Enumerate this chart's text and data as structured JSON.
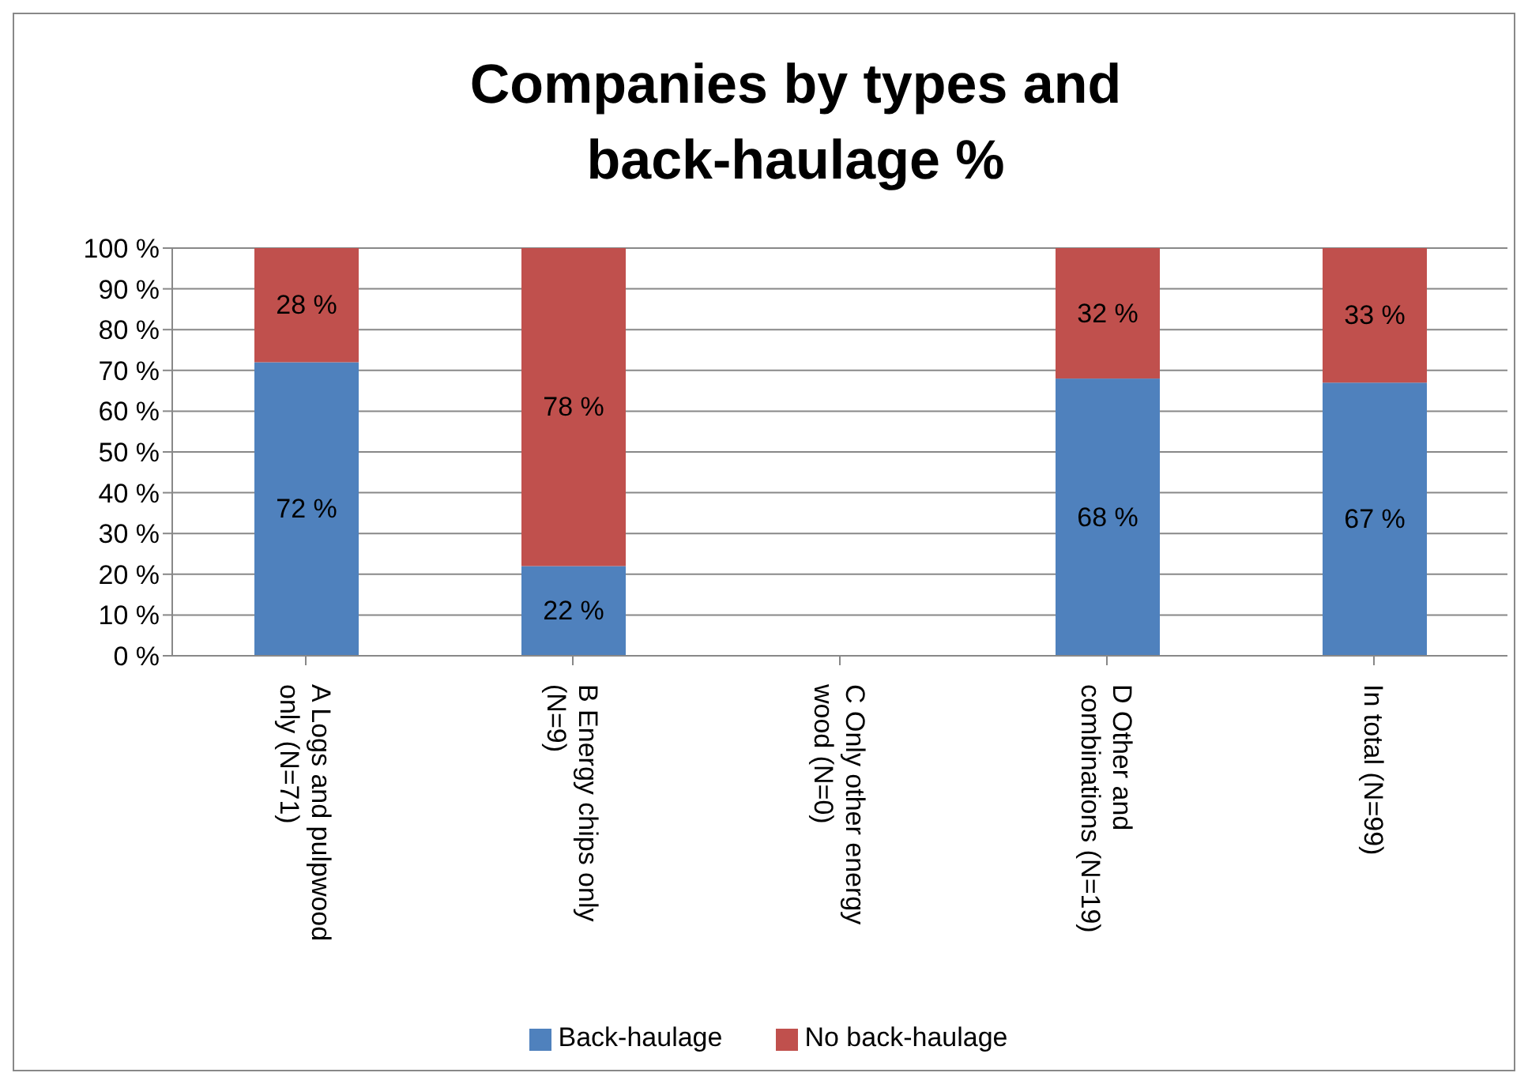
{
  "chart_data": {
    "type": "bar",
    "title": "Companies by types and back-haulage %",
    "categories": [
      "A Logs and pulpwood only (N=71)",
      "B Energy chips only (N=9)",
      "C Only other energy wood (N=0)",
      "D Other and combinations (N=19)",
      "In total  (N=99)"
    ],
    "stacked": true,
    "ylim": [
      0,
      100
    ],
    "yticks": [
      {
        "value": 0,
        "label": "0 %"
      },
      {
        "value": 10,
        "label": "10 %"
      },
      {
        "value": 20,
        "label": "20 %"
      },
      {
        "value": 30,
        "label": "30 %"
      },
      {
        "value": 40,
        "label": "40 %"
      },
      {
        "value": 50,
        "label": "50 %"
      },
      {
        "value": 60,
        "label": "60 %"
      },
      {
        "value": 70,
        "label": "70 %"
      },
      {
        "value": 80,
        "label": "80 %"
      },
      {
        "value": 90,
        "label": "90 %"
      },
      {
        "value": 100,
        "label": "100 %"
      }
    ],
    "series": [
      {
        "name": "Back-haulage",
        "color": "#4f81bd",
        "values": [
          72,
          22,
          null,
          68,
          67
        ],
        "value_labels": [
          "72 %",
          "22 %",
          null,
          "68 %",
          "67 %"
        ]
      },
      {
        "name": "No back-haulage",
        "color": "#c0504d",
        "values": [
          28,
          78,
          null,
          32,
          33
        ],
        "value_labels": [
          "28 %",
          "78 %",
          null,
          "32 %",
          "33 %"
        ]
      }
    ],
    "grid": "y",
    "legend": "bottom"
  }
}
